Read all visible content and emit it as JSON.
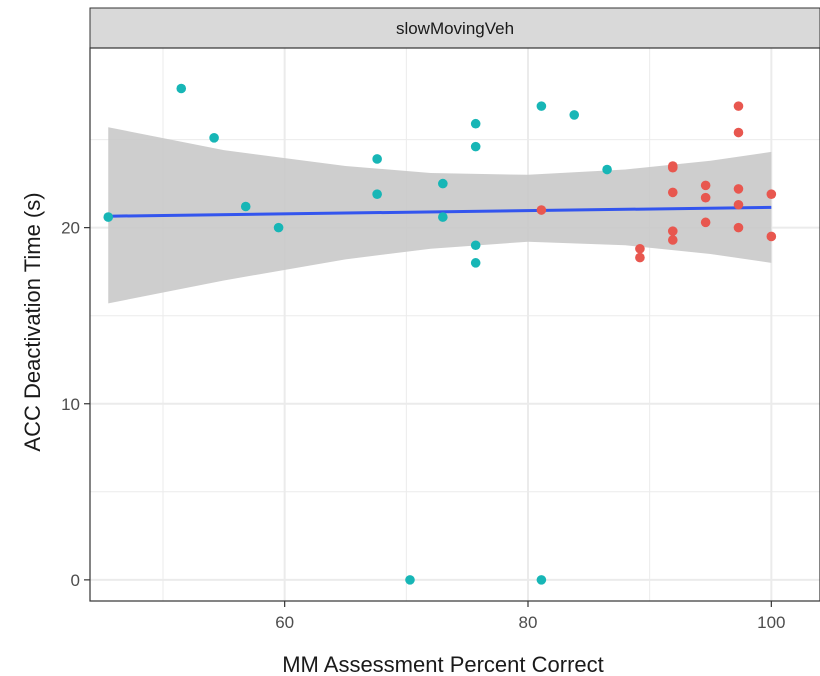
{
  "chart_data": {
    "type": "scatter",
    "facet_label": "slowMovingVeh",
    "xlabel": "MM Assessment Percent Correct",
    "ylabel": "ACC Deactivation Time (s)",
    "xlim": [
      44,
      104
    ],
    "ylim": [
      -1.2,
      30.2
    ],
    "x_ticks": [
      60,
      80,
      100
    ],
    "y_ticks": [
      0,
      10,
      20
    ],
    "x_minor": [
      50,
      70,
      90
    ],
    "y_minor": [
      5,
      15,
      25
    ],
    "grid": true,
    "colors": {
      "teal": "#17b6b6",
      "red": "#e8574f",
      "trend": "#3355ee",
      "ribbon": "#c9c9c9",
      "strip": "#d9d9d9",
      "panel_border": "#333333",
      "grid": "#ebebeb"
    },
    "series": [
      {
        "color": "teal",
        "points": [
          [
            45.5,
            20.6
          ],
          [
            51.5,
            27.9
          ],
          [
            54.2,
            25.1
          ],
          [
            56.8,
            21.2
          ],
          [
            59.5,
            20.0
          ],
          [
            67.6,
            23.9
          ],
          [
            67.6,
            21.9
          ],
          [
            73.0,
            22.5
          ],
          [
            73.0,
            20.6
          ],
          [
            70.3,
            0.0
          ],
          [
            75.7,
            25.9
          ],
          [
            75.7,
            24.6
          ],
          [
            75.7,
            19.0
          ],
          [
            75.7,
            18.0
          ],
          [
            81.1,
            26.9
          ],
          [
            81.1,
            0.0
          ],
          [
            83.8,
            26.4
          ],
          [
            86.5,
            23.3
          ]
        ]
      },
      {
        "color": "red",
        "points": [
          [
            81.1,
            21.0
          ],
          [
            89.2,
            18.8
          ],
          [
            89.2,
            18.3
          ],
          [
            91.9,
            23.4
          ],
          [
            91.9,
            23.5
          ],
          [
            91.9,
            22.0
          ],
          [
            91.9,
            19.8
          ],
          [
            91.9,
            19.3
          ],
          [
            94.6,
            22.4
          ],
          [
            94.6,
            21.7
          ],
          [
            94.6,
            20.3
          ],
          [
            97.3,
            26.9
          ],
          [
            97.3,
            25.4
          ],
          [
            97.3,
            22.2
          ],
          [
            97.3,
            21.3
          ],
          [
            97.3,
            20.0
          ],
          [
            100.0,
            21.9
          ],
          [
            100.0,
            19.5
          ]
        ]
      }
    ],
    "trend_line": {
      "x": [
        45.5,
        100.0
      ],
      "y": [
        20.65,
        21.15
      ]
    },
    "confidence_band": {
      "x": [
        45.5,
        55,
        65,
        72,
        80,
        88,
        95,
        100
      ],
      "upper": [
        25.7,
        24.4,
        23.5,
        23.1,
        23.0,
        23.3,
        23.8,
        24.3
      ],
      "lower": [
        15.7,
        17.0,
        18.2,
        18.8,
        19.2,
        19.0,
        18.5,
        18.0
      ]
    }
  }
}
